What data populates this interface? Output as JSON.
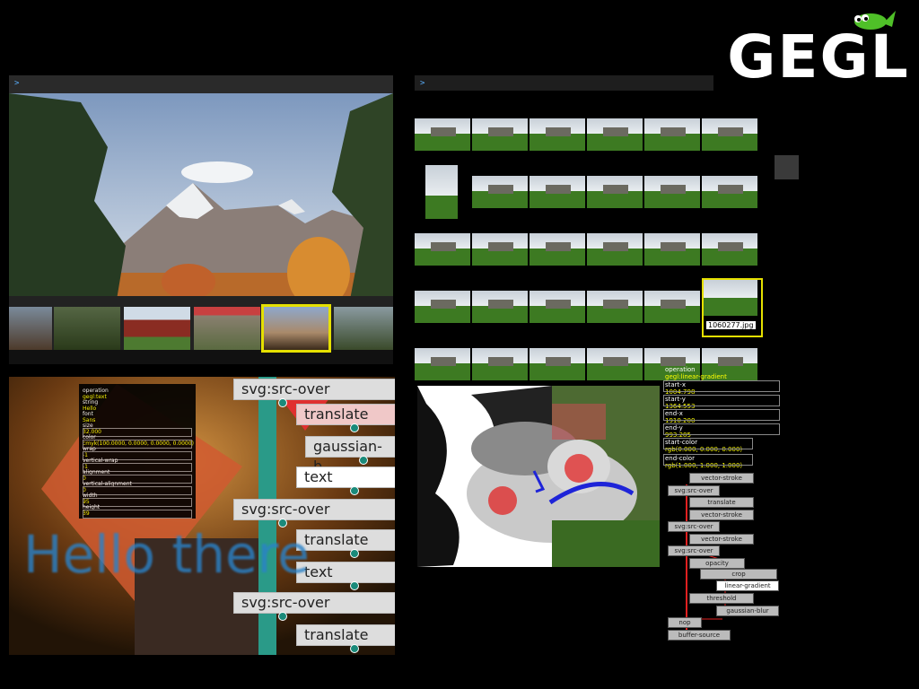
{
  "logo": {
    "text": "GEGL"
  },
  "panel1": {
    "prompt": ">"
  },
  "panel2": {
    "prompt": ">",
    "selected_filename": "1060277.jpg"
  },
  "panel3": {
    "nodes": [
      "svg:src-over",
      "translate",
      "gaussian-b",
      "text",
      "svg:src-over",
      "translate",
      "text",
      "svg:src-over",
      "translate"
    ],
    "properties": [
      {
        "label": "operation",
        "value": "gegl:text"
      },
      {
        "label": "string",
        "value": "Hello"
      },
      {
        "label": "font",
        "value": "Sans"
      },
      {
        "label": "size",
        "value": "32.000"
      },
      {
        "label": "color",
        "value": "cmyk(100.0000, 0.0000, 0.0000, 0.0000)"
      },
      {
        "label": "wrap",
        "value": "-1"
      },
      {
        "label": "vertical-wrap",
        "value": "-1"
      },
      {
        "label": "alignment",
        "value": "0"
      },
      {
        "label": "vertical-alignment",
        "value": "0"
      },
      {
        "label": "width",
        "value": "95"
      },
      {
        "label": "height",
        "value": "39"
      }
    ],
    "overlay_text": "Hello there"
  },
  "panel4": {
    "properties": [
      {
        "label": "operation",
        "value": "gegl:linear-gradient"
      },
      {
        "label": "start-x",
        "value": "1004.798"
      },
      {
        "label": "start-y",
        "value": "1364.553"
      },
      {
        "label": "end-x",
        "value": "1910.200"
      },
      {
        "label": "end-y",
        "value": "993.285"
      },
      {
        "label": "start-color",
        "value": "rgb(0.000, 0.000, 0.000)"
      },
      {
        "label": "end-color",
        "value": "rgb(1.000, 1.000, 1.000)"
      }
    ],
    "graph_nodes": [
      "vector-stroke",
      "svg:src-over",
      "translate",
      "vector-stroke",
      "svg:src-over",
      "vector-stroke",
      "svg:src-over",
      "opacity",
      "crop",
      "linear-gradient",
      "threshold",
      "gaussian-blur",
      "nop",
      "buffer-source"
    ]
  }
}
